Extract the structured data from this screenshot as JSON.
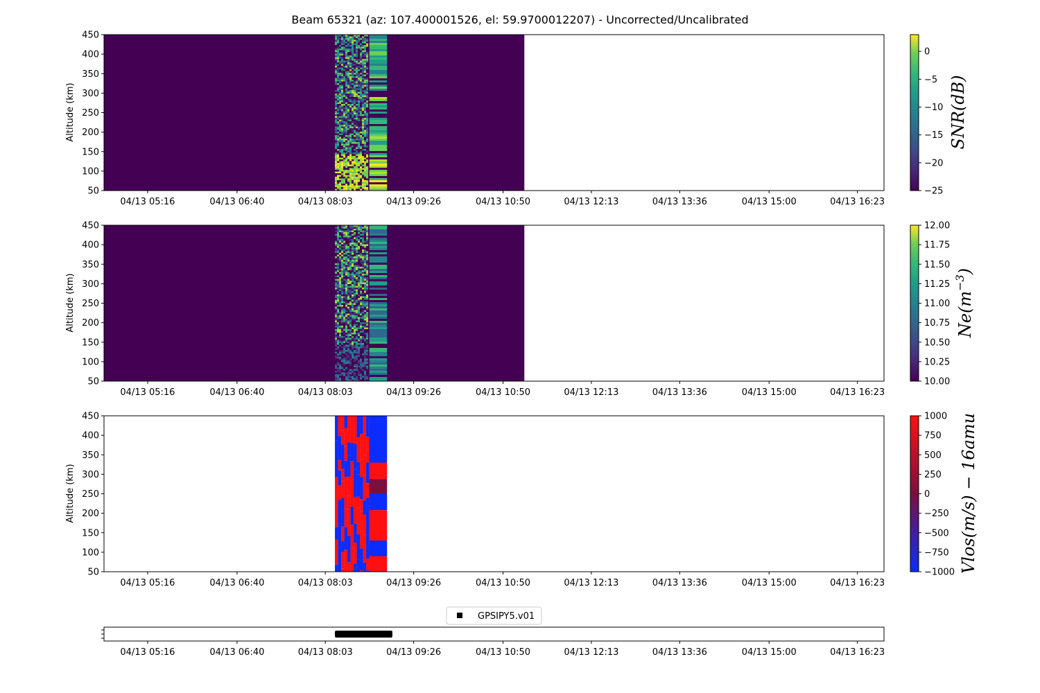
{
  "title": "Beam 65321 (az: 107.400001526, el: 59.9700012207) - Uncorrected/Uncalibrated",
  "chart_data": [
    {
      "type": "heatmap",
      "ylabel": "Altitude (km)",
      "ylim": [
        50,
        450
      ],
      "yticks": [
        "50",
        "100",
        "150",
        "200",
        "250",
        "300",
        "350",
        "400",
        "450"
      ],
      "xticks": [
        "04/13 05:16",
        "04/13 06:40",
        "04/13 08:03",
        "04/13 09:26",
        "04/13 10:50",
        "04/13 12:13",
        "04/13 13:36",
        "04/13 15:00",
        "04/13 16:23"
      ],
      "colorbar": {
        "label": "SNR(dB)",
        "colormap": "viridis",
        "range": [
          -25,
          3
        ],
        "ticks": [
          "0",
          "−5",
          "−10",
          "−15",
          "−20",
          "−25"
        ]
      },
      "data_extent": {
        "from": "04/13 04:40",
        "to": "04/13 11:10"
      },
      "active_interval": {
        "from": "04/13 08:12",
        "to": "04/13 09:01"
      }
    },
    {
      "type": "heatmap",
      "ylabel": "Altitude (km)",
      "ylim": [
        50,
        450
      ],
      "yticks": [
        "50",
        "100",
        "150",
        "200",
        "250",
        "300",
        "350",
        "400",
        "450"
      ],
      "xticks": [
        "04/13 05:16",
        "04/13 06:40",
        "04/13 08:03",
        "04/13 09:26",
        "04/13 10:50",
        "04/13 12:13",
        "04/13 13:36",
        "04/13 15:00",
        "04/13 16:23"
      ],
      "colorbar": {
        "label": "Ne(m^-3)",
        "colormap": "viridis",
        "range": [
          10.0,
          12.0
        ],
        "ticks": [
          "12.00",
          "11.75",
          "11.50",
          "11.25",
          "11.00",
          "10.75",
          "10.50",
          "10.25",
          "10.00"
        ]
      },
      "data_extent": {
        "from": "04/13 04:40",
        "to": "04/13 11:10"
      },
      "active_interval": {
        "from": "04/13 08:12",
        "to": "04/13 09:01"
      }
    },
    {
      "type": "heatmap",
      "ylabel": "Altitude (km)",
      "ylim": [
        50,
        450
      ],
      "yticks": [
        "50",
        "100",
        "150",
        "200",
        "250",
        "300",
        "350",
        "400",
        "450"
      ],
      "xticks": [
        "04/13 05:16",
        "04/13 06:40",
        "04/13 08:03",
        "04/13 09:26",
        "04/13 10:50",
        "04/13 12:13",
        "04/13 13:36",
        "04/13 15:00",
        "04/13 16:23"
      ],
      "colorbar": {
        "label": "Vlos(m/s) − 16amu",
        "colormap": "blue-red",
        "range": [
          -1000,
          1000
        ],
        "ticks": [
          "1000",
          "750",
          "500",
          "250",
          "0",
          "−250",
          "−500",
          "−750",
          "−1000"
        ]
      },
      "active_interval": {
        "from": "04/13 08:12",
        "to": "04/13 09:01"
      },
      "right_column_blocks": [
        {
          "from_km": 330,
          "to_km": 450,
          "value": -1000
        },
        {
          "from_km": 288,
          "to_km": 330,
          "value": 1000
        },
        {
          "from_km": 250,
          "to_km": 288,
          "value": 60
        },
        {
          "from_km": 208,
          "to_km": 250,
          "value": -1000
        },
        {
          "from_km": 130,
          "to_km": 208,
          "value": 1000
        },
        {
          "from_km": 90,
          "to_km": 130,
          "value": -1000
        },
        {
          "from_km": 50,
          "to_km": 90,
          "value": 1000
        }
      ]
    },
    {
      "type": "scatter",
      "legend": "GPSIPY5.v01",
      "legend_position": "top-center",
      "xticks": [
        "04/13 05:16",
        "04/13 06:40",
        "04/13 08:03",
        "04/13 09:26",
        "04/13 10:50",
        "04/13 12:13",
        "04/13 13:36",
        "04/13 15:00",
        "04/13 16:23"
      ],
      "marker_interval": {
        "from": "04/13 08:12",
        "to": "04/13 09:06"
      }
    }
  ]
}
